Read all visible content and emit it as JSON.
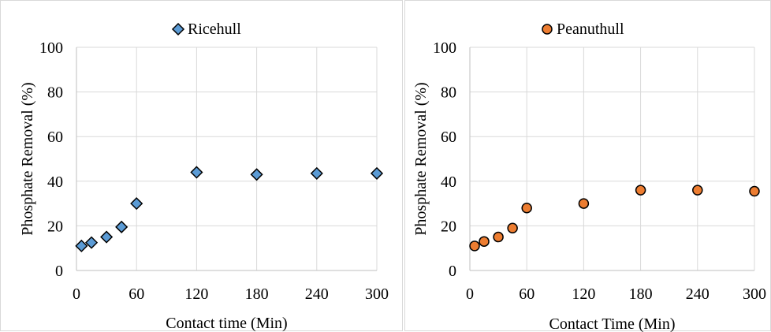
{
  "chart_data": [
    {
      "type": "scatter",
      "xlabel": "Contact time (Min)",
      "ylabel": "Phosphate Removal (%)",
      "xlim": [
        0,
        300
      ],
      "ylim": [
        0,
        100
      ],
      "xticks": [
        "0",
        "60",
        "120",
        "180",
        "240",
        "300"
      ],
      "yticks": [
        "0",
        "20",
        "40",
        "60",
        "80",
        "100"
      ],
      "grid": true,
      "legend_position": "top",
      "series": [
        {
          "name": "Ricehull",
          "marker": "diamond",
          "color": "#5B9BD5",
          "x": [
            5,
            15,
            30,
            45,
            60,
            120,
            180,
            240,
            300
          ],
          "y": [
            11,
            12.5,
            15,
            19.5,
            30,
            44,
            43,
            43.5,
            43.5
          ]
        }
      ]
    },
    {
      "type": "scatter",
      "xlabel": "Contact Time (Min)",
      "ylabel": "Phosphate Removal (%)",
      "xlim": [
        0,
        300
      ],
      "ylim": [
        0,
        100
      ],
      "xticks": [
        "0",
        "60",
        "120",
        "180",
        "240",
        "300"
      ],
      "yticks": [
        "0",
        "20",
        "40",
        "60",
        "80",
        "100"
      ],
      "grid": true,
      "legend_position": "top",
      "series": [
        {
          "name": "Peanuthull",
          "marker": "circle",
          "color": "#ED7D31",
          "x": [
            5,
            15,
            30,
            45,
            60,
            120,
            180,
            240,
            300
          ],
          "y": [
            11,
            13,
            15,
            19,
            28,
            30,
            36,
            36,
            35.5
          ]
        }
      ]
    }
  ]
}
